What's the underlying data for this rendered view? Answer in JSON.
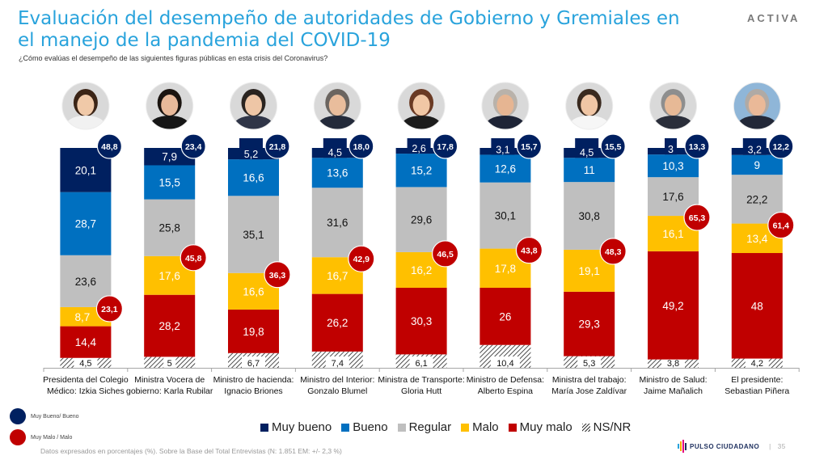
{
  "header": {
    "title": "Evaluación del desempeño de autoridades de Gobierno y Gremiales en el manejo de la pandemia del COVID-19",
    "subtitle": "¿Cómo evalúas el desempeño de las siguientes figuras públicas en esta crisis del Coronavirus?",
    "brand": "ACTIVA"
  },
  "key": {
    "positive_label": "Muy Bueno/ Bueno",
    "negative_label": "Muy Malo / Malo",
    "positive_color": "#002060",
    "negative_color": "#c00000"
  },
  "footer": {
    "note": "Datos expresados en porcentajes (%). Sobre la Base del Total Entrevistas (N: 1.851  EM: +/- 2,3 %)",
    "brand": "PULSO CIUDADANO",
    "separator": "|",
    "page": "35"
  },
  "chart_data": {
    "type": "bar",
    "stacked": true,
    "title": "Evaluación del desempeño de autoridades de Gobierno y Gremiales en el manejo de la pandemia del COVID-19",
    "xlabel": "",
    "ylabel": "",
    "ylim": [
      0,
      100
    ],
    "grid": false,
    "legend_position": "bottom",
    "categories": [
      "Presidenta del Colegio Médico: Izkia Siches",
      "Ministra Vocera de gobierno: Karla Rubilar",
      "Ministro de hacienda: Ignacio Briones",
      "Ministro del Interior: Gonzalo Blumel",
      "Ministra de Transporte: Gloria Hutt",
      "Ministro de Defensa: Alberto Espina",
      "Ministra del trabajo: María Jose Zaldívar",
      "Ministro de Salud: Jaime Mañalich",
      "El presidente: Sebastian Piñera"
    ],
    "series": [
      {
        "name": "Muy bueno",
        "color": "#002060",
        "values": [
          20.1,
          7.9,
          5.2,
          4.5,
          2.6,
          3.1,
          4.5,
          3,
          3.2
        ],
        "labels": [
          "20,1",
          "7,9",
          "5,2",
          "4,5",
          "2,6",
          "3,1",
          "4,5",
          "3",
          "3,2"
        ]
      },
      {
        "name": "Bueno",
        "color": "#0070c0",
        "values": [
          28.7,
          15.5,
          16.6,
          13.6,
          15.2,
          12.6,
          11,
          10.3,
          9
        ],
        "labels": [
          "28,7",
          "15,5",
          "16,6",
          "13,6",
          "15,2",
          "12,6",
          "11",
          "10,3",
          "9"
        ]
      },
      {
        "name": "Regular",
        "color": "#bfbfbf",
        "values": [
          23.6,
          25.8,
          35.1,
          31.6,
          29.6,
          30.1,
          30.8,
          17.6,
          22.2
        ],
        "labels": [
          "23,6",
          "25,8",
          "35,1",
          "31,6",
          "29,6",
          "30,1",
          "30,8",
          "17,6",
          "22,2"
        ]
      },
      {
        "name": "Malo",
        "color": "#ffc000",
        "values": [
          8.7,
          17.6,
          16.6,
          16.7,
          16.2,
          17.8,
          19.1,
          16.1,
          13.4
        ],
        "labels": [
          "8,7",
          "17,6",
          "16,6",
          "16,7",
          "16,2",
          "17,8",
          "19,1",
          "16,1",
          "13,4"
        ]
      },
      {
        "name": "Muy malo",
        "color": "#c00000",
        "values": [
          14.4,
          28.2,
          19.8,
          26.2,
          30.3,
          26,
          29.3,
          49.2,
          48
        ],
        "labels": [
          "14,4",
          "28,2",
          "19,8",
          "26,2",
          "30,3",
          "26",
          "29,3",
          "49,2",
          "48"
        ]
      },
      {
        "name": "NS/NR",
        "color": "hatch",
        "values": [
          4.5,
          5,
          6.7,
          7.4,
          6.1,
          10.4,
          5.3,
          3.8,
          4.2
        ],
        "labels": [
          "4,5",
          "5",
          "6,7",
          "7,4",
          "6,1",
          "10,4",
          "5,3",
          "3,8",
          "4,2"
        ]
      }
    ],
    "positive_totals": {
      "name": "Muy Bueno/ Bueno",
      "values": [
        48.8,
        23.4,
        21.8,
        18.0,
        17.8,
        15.7,
        15.5,
        13.3,
        12.2
      ],
      "labels": [
        "48,8",
        "23,4",
        "21,8",
        "18,0",
        "17,8",
        "15,7",
        "15,5",
        "13,3",
        "12,2"
      ]
    },
    "negative_totals": {
      "name": "Muy Malo / Malo",
      "values": [
        23.1,
        45.8,
        36.3,
        42.9,
        46.5,
        43.8,
        48.3,
        65.3,
        61.4
      ],
      "labels": [
        "23,1",
        "45,8",
        "36,3",
        "42,9",
        "46,5",
        "43,8",
        "48,3",
        "65,3",
        "61,4"
      ]
    }
  }
}
